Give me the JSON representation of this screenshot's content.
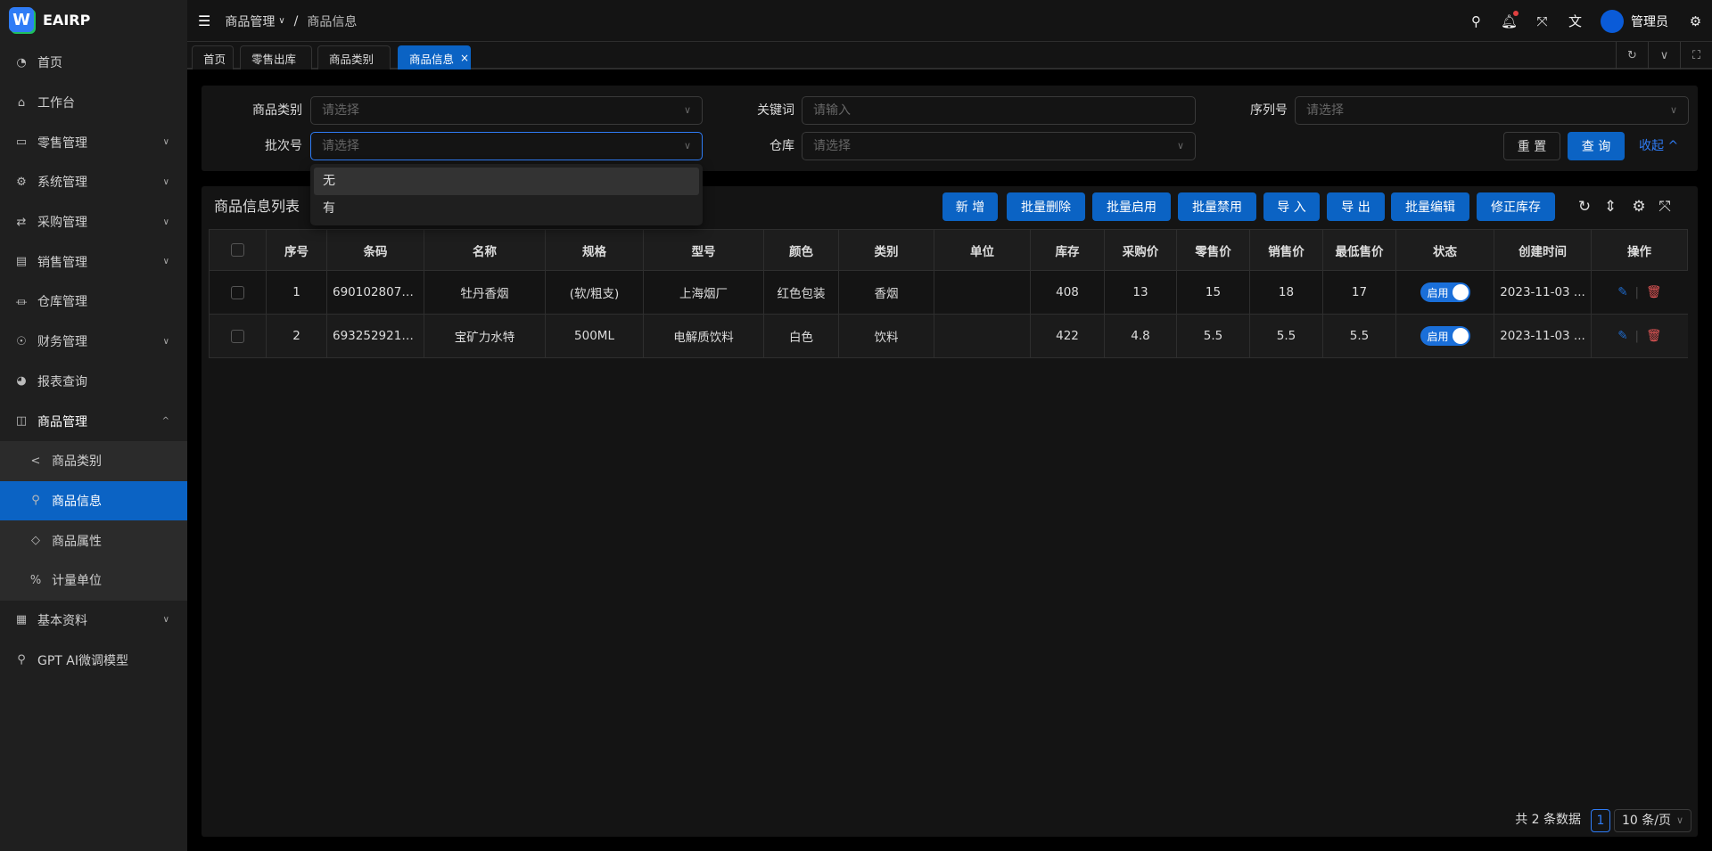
{
  "app": {
    "logo_letter": "W",
    "name": "EAIRP"
  },
  "sidebar": {
    "items": [
      {
        "label": "首页",
        "icon": "dashboard-icon"
      },
      {
        "label": "工作台",
        "icon": "home-icon"
      },
      {
        "label": "零售管理",
        "icon": "folder-icon",
        "chevron": true
      },
      {
        "label": "系统管理",
        "icon": "gear-icon",
        "chevron": true
      },
      {
        "label": "采购管理",
        "icon": "repeat-icon",
        "chevron": true
      },
      {
        "label": "销售管理",
        "icon": "register-icon",
        "chevron": true
      },
      {
        "label": "仓库管理",
        "icon": "bank-icon"
      },
      {
        "label": "财务管理",
        "icon": "money-icon",
        "chevron": true
      },
      {
        "label": "报表查询",
        "icon": "pie-chart-icon"
      },
      {
        "label": "商品管理",
        "icon": "shopping-bag-icon",
        "open": true
      }
    ],
    "subitems": [
      {
        "label": "商品类别",
        "icon": "share-icon"
      },
      {
        "label": "商品信息",
        "icon": "rocket-icon",
        "active": true
      },
      {
        "label": "商品属性",
        "icon": "tag-icon"
      },
      {
        "label": "计量单位",
        "icon": "percent-icon"
      }
    ],
    "after": [
      {
        "label": "基本资料",
        "icon": "grid-icon",
        "chevron": true
      },
      {
        "label": "GPT AI微调模型",
        "icon": "rocket-icon"
      }
    ]
  },
  "header": {
    "breadcrumb": [
      "商品管理",
      "商品信息"
    ],
    "user": "管理员"
  },
  "tabs": [
    {
      "label": "首页"
    },
    {
      "label": "零售出库"
    },
    {
      "label": "商品类别"
    },
    {
      "label": "商品信息",
      "active": true,
      "close": "×"
    }
  ],
  "filters": {
    "category": {
      "label": "商品类别",
      "placeholder": "请选择"
    },
    "keyword": {
      "label": "关键词",
      "placeholder": "请输入"
    },
    "serial": {
      "label": "序列号",
      "placeholder": "请选择"
    },
    "batch": {
      "label": "批次号",
      "placeholder": "请选择",
      "options": [
        "无",
        "有"
      ]
    },
    "warehouse": {
      "label": "仓库",
      "placeholder": "请选择"
    },
    "reset": "重 置",
    "query": "查 询",
    "collapse": "收起"
  },
  "list": {
    "title": "商品信息列表",
    "buttons": [
      "新 增",
      "批量删除",
      "批量启用",
      "批量禁用",
      "导 入",
      "导 出",
      "批量编辑",
      "修正库存"
    ],
    "columns": [
      "序号",
      "条码",
      "名称",
      "规格",
      "型号",
      "颜色",
      "类别",
      "单位",
      "库存",
      "采购价",
      "零售价",
      "销售价",
      "最低售价",
      "状态",
      "创建时间",
      "操作"
    ],
    "rows": [
      [
        "1",
        "6901028075...",
        "牡丹香烟",
        "(软/粗支)",
        "上海烟厂",
        "红色包装",
        "香烟",
        "",
        "408",
        "13",
        "15",
        "18",
        "17",
        "启用",
        "2023-11-03 ..."
      ],
      [
        "2",
        "6932529211...",
        "宝矿力水特",
        "500ML",
        "电解质饮料",
        "白色",
        "饮料",
        "",
        "422",
        "4.8",
        "5.5",
        "5.5",
        "5.5",
        "启用",
        "2023-11-03 ..."
      ]
    ]
  },
  "pagination": {
    "total": "共 2 条数据",
    "page": "1",
    "size": "10 条/页"
  },
  "colors": {
    "accent": "#0b63c4",
    "danger": "#e05555",
    "bg": "#141414"
  }
}
